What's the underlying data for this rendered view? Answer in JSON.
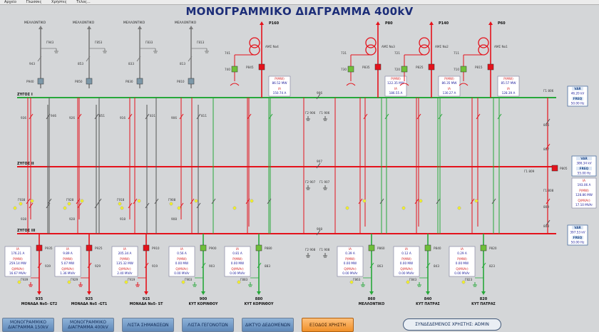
{
  "menu": [
    "Αρχείο",
    "Γλώσσες",
    "Χρήστες",
    "Τέλος..."
  ],
  "title": "ΜΟΝΟΓΡΑΜΜΙΚΟ ΔΙΑΓΡΑΜΜΑ 400kV",
  "colors": {
    "bg": "#d4d6d8",
    "bus1": "#27a83a",
    "bus_red": "#e4121b",
    "gray_feeder": "#7d7d7d",
    "closed": "#e4121b",
    "open_green": "#6fbf3a"
  },
  "buses": [
    "ΖΥΓΟΣ Ι",
    "ΖΥΓΟΣ ΙΙ",
    "ΖΥΓΟΣ ΙΙΙ"
  ],
  "top_bays": [
    {
      "label": "ΜΕΛΛΟΝΤΙΚΟ",
      "earth": "Γ943",
      "iso": "943",
      "breaker": "Ρ940",
      "b1": "936",
      "b2": "946",
      "b3": "938",
      "e1": "Γ938"
    },
    {
      "label": "ΜΕΛΛΟΝΤΙΚΟ",
      "earth": "Γ853",
      "iso": "853",
      "breaker": "Ρ850",
      "b1": "926",
      "b2": "851",
      "b3": "928",
      "e1": "Γ928"
    },
    {
      "label": "ΜΕΛΛΟΝΤΙΚΟ",
      "earth": "Γ833",
      "iso": "833",
      "breaker": "Ρ830",
      "b1": "916",
      "b2": "831",
      "b3": "918",
      "e1": "Γ918"
    },
    {
      "label": "ΜΕΛΛΟΝΤΙΚΟ",
      "earth": "Γ813",
      "iso": "813",
      "breaker": "Ρ810",
      "b1": "906",
      "b2": "811",
      "b3": "908",
      "e1": "Γ908"
    }
  ],
  "transformers": [
    {
      "label": "P160",
      "name": "ΑΜΣ Νο4",
      "breaker": "Ρ845",
      "iso": "741",
      "brk2": "740",
      "p": "86.52 MW",
      "i": "150.74 A"
    },
    {
      "label": "P80",
      "name": "ΑΜΣ Νο3",
      "breaker": "Ρ835",
      "iso": "731",
      "brk2": "730",
      "p": "122.35 MW",
      "i": "186.55 A"
    },
    {
      "label": "P140",
      "name": "ΑΜΣ Νο2",
      "breaker": "Ρ825",
      "iso": "721",
      "brk2": "720",
      "p": "86.35 MW",
      "i": "130.27 A"
    },
    {
      "label": "P60",
      "name": "ΑΜΣ Νο1",
      "breaker": "Ρ815",
      "iso": "711",
      "brk2": "710",
      "p": "85.57 MW",
      "i": "128.39 A"
    }
  ],
  "box_labels": {
    "p": "P(MW)",
    "i": "IA",
    "q": "Q(MVAr)",
    "s": "S(MVA)",
    "var": "VAR",
    "freq": "FREQ"
  },
  "bus_measure": [
    {
      "v": "46.20 kV",
      "f": "50.00 Hz"
    },
    {
      "v": "386.34 kV",
      "f": "55.00 Hz",
      "i": "193.06 A",
      "p": "128.86 MW",
      "q": "17.10 MVAr"
    },
    {
      "v": "397.53 kV",
      "f": "50.00 Hz"
    }
  ],
  "bottom_bays": [
    {
      "num": "935",
      "name": "ΜΟΝΑΔΑ No5- GT2",
      "breaker": "Ρ935",
      "sw": "939",
      "earth": "Γ939",
      "i": "176.21 A",
      "p": "259.14 MW",
      "q": "16.67 MVAr"
    },
    {
      "num": "925",
      "name": "ΜΟΝΑΔΑ No5 -GT1",
      "breaker": "Ρ925",
      "sw": "929",
      "earth": "Γ929",
      "i": "9.89 A",
      "p": "5.07 MW",
      "q": "1.36 MVAr"
    },
    {
      "num": "915",
      "name": "ΜΟΝΑΔΑ No5- ST",
      "breaker": "Ρ910",
      "sw": "919",
      "earth": "Γ919",
      "i": "205.34 A",
      "p": "135.32 MW",
      "q": "2.40 MVAr"
    },
    {
      "num": "900",
      "name": "ΚΥΤ ΚΟΡΙΝΘΟΥ",
      "breaker": "Ρ900",
      "sw": "903",
      "earth": "Γ903",
      "i": "0.56 A",
      "p": "0.00 MW",
      "q": "0.00 MVAr"
    },
    {
      "num": "880",
      "name": "ΚΥΤ ΚΟΡΙΝΘΟΥ",
      "breaker": "Ρ880",
      "sw": "883",
      "earth": "Γ883",
      "i": "0.81 A",
      "p": "0.00 MW",
      "q": "0.00 MVAr"
    },
    {
      "num": "860",
      "name": "ΜΕΛΛΟΝΤΙΚΟ",
      "breaker": "Ρ860",
      "sw": "863",
      "earth": "Γ863",
      "i": "0.39 A",
      "p": "0.00 MW",
      "q": "0.00 MVAr"
    },
    {
      "num": "840",
      "name": "ΚΥΤ ΠΑΤΡΑΣ",
      "breaker": "Ρ840",
      "sw": "843",
      "earth": "Γ843",
      "i": "0.12 A",
      "p": "0.00 MW",
      "q": "0.00 MVAr"
    },
    {
      "num": "820",
      "name": "ΚΥΤ ΠΑΤΡΑΣ",
      "breaker": "Ρ820",
      "sw": "823",
      "earth": "Γ823",
      "i": "0.29 A",
      "p": "0.00 MW",
      "q": "0.00 MVAr"
    }
  ],
  "coupler_labels": {
    "top": "906",
    "mid": "907",
    "bot": "908",
    "g1": "Γ2 906",
    "g2": "Γ1 906",
    "g3": "Γ2 907",
    "g4": "Γ1 907",
    "g5": "Γ2 908",
    "g6": "Γ1 908",
    "right_brk": "Ρ805",
    "right1": "Γ1 806",
    "right2": "807",
    "right3": "Γ1 808",
    "right4": "808",
    "right5": "Γ1 809",
    "right6": "809",
    "right7": "806"
  },
  "buttons": [
    {
      "label": "ΜΟΝΟΓΡΑΜΜΙΚΟ ΔΙΑΓΡΑΜΜΑ 150kV"
    },
    {
      "label": "ΜΟΝΟΓΡΑΜΜΙΚΟ ΔΙΑΓΡΑΜΜΑ 400kV"
    },
    {
      "label": "ΛΙΣΤΑ ΣΗΜΑΝΣΕΩΝ"
    },
    {
      "label": "ΛΙΣΤΑ ΓΕΓΟΝΟΤΩΝ"
    },
    {
      "label": "ΔΙΚΤΥΟ ΔΕΔΟΜΕΝΩΝ"
    },
    {
      "label": "ΕΞΟΔΟΣ ΧΡΗΣΤΗ"
    }
  ],
  "user": "ΣΥΝΔΕΔΕΜΕΝΟΣ ΧΡΗΣΤΗΣ: ΑDMIN"
}
